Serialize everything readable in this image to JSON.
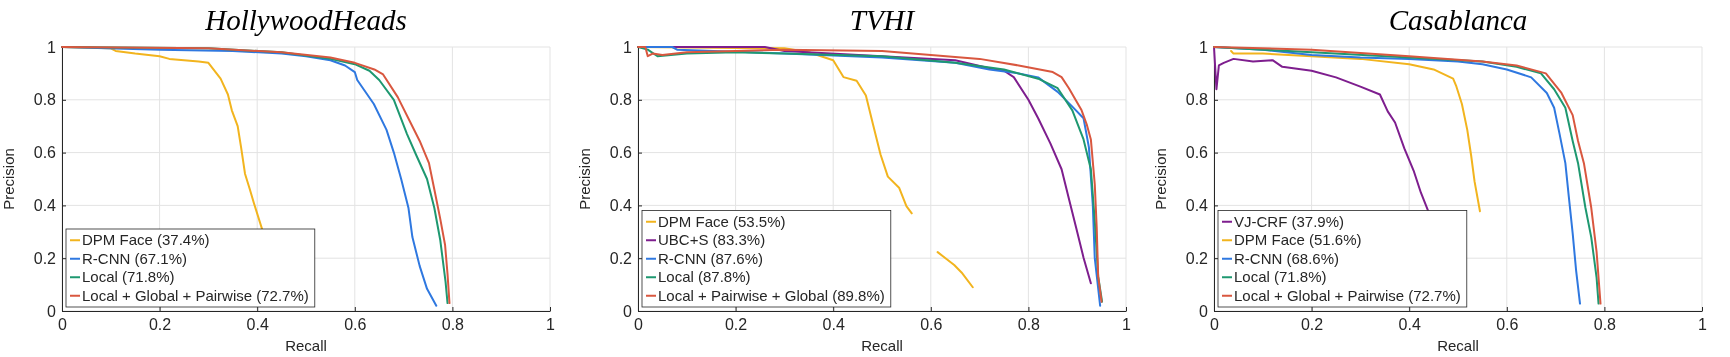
{
  "chart_data": [
    {
      "type": "line",
      "title": "HollywoodHeads",
      "xlabel": "Recall",
      "ylabel": "Precision",
      "xlim": [
        0,
        1
      ],
      "ylim": [
        0,
        1
      ],
      "xticks": [
        0,
        0.2,
        0.4,
        0.6,
        0.8,
        1
      ],
      "yticks": [
        0,
        0.2,
        0.4,
        0.6,
        0.8,
        1
      ],
      "grid": true,
      "legend": "bottom left",
      "series": [
        {
          "name": "DPM Face (37.4%)",
          "color": "#f2b41e",
          "x": [
            0,
            0.1,
            0.11,
            0.15,
            0.2,
            0.22,
            0.28,
            0.3,
            0.325,
            0.34,
            0.348,
            0.36,
            0.367,
            0.375,
            0.385,
            0.393,
            0.41
          ],
          "values": [
            1,
            0.995,
            0.985,
            0.975,
            0.965,
            0.955,
            0.945,
            0.94,
            0.88,
            0.82,
            0.76,
            0.7,
            0.62,
            0.52,
            0.46,
            0.41,
            0.31
          ]
        },
        {
          "name": "R-CNN (67.1%)",
          "color": "#2f78e0",
          "x": [
            0,
            0.2,
            0.35,
            0.45,
            0.5,
            0.55,
            0.58,
            0.6,
            0.605,
            0.639,
            0.665,
            0.68,
            0.695,
            0.71,
            0.718,
            0.733,
            0.748,
            0.767
          ],
          "values": [
            1,
            0.99,
            0.985,
            0.975,
            0.965,
            0.95,
            0.93,
            0.905,
            0.875,
            0.784,
            0.686,
            0.6,
            0.5,
            0.39,
            0.28,
            0.17,
            0.084,
            0.02
          ]
        },
        {
          "name": "Local (71.8%)",
          "color": "#1e9870",
          "x": [
            0,
            0.3,
            0.45,
            0.55,
            0.6,
            0.63,
            0.65,
            0.68,
            0.707,
            0.726,
            0.748,
            0.763,
            0.775,
            0.786,
            0.79
          ],
          "values": [
            1,
            0.995,
            0.98,
            0.955,
            0.935,
            0.91,
            0.875,
            0.8,
            0.67,
            0.59,
            0.5,
            0.39,
            0.27,
            0.11,
            0.03
          ]
        },
        {
          "name": "Local + Global + Pairwise (72.7%)",
          "color": "#d9573f",
          "x": [
            0,
            0.3,
            0.45,
            0.55,
            0.6,
            0.64,
            0.658,
            0.688,
            0.714,
            0.733,
            0.752,
            0.763,
            0.775,
            0.785,
            0.79,
            0.794
          ],
          "values": [
            1,
            0.995,
            0.98,
            0.96,
            0.94,
            0.915,
            0.896,
            0.81,
            0.714,
            0.644,
            0.56,
            0.46,
            0.35,
            0.25,
            0.14,
            0.03
          ]
        }
      ]
    },
    {
      "type": "line",
      "title": "TVHI",
      "xlabel": "Recall",
      "ylabel": "Precision",
      "xlim": [
        0,
        1
      ],
      "ylim": [
        0,
        1
      ],
      "xticks": [
        0,
        0.2,
        0.4,
        0.6,
        0.8,
        1
      ],
      "yticks": [
        0,
        0.2,
        0.4,
        0.6,
        0.8,
        1
      ],
      "grid": true,
      "legend": "bottom left",
      "series": [
        {
          "name": "DPM Face (53.5%)",
          "color": "#f2b41e",
          "x": [
            0,
            0.3,
            0.35,
            0.4,
            0.421,
            0.448,
            0.467,
            0.482,
            0.497,
            0.512,
            0.535,
            0.55,
            0.561,
            null,
            0.614,
            0.648,
            0.663,
            0.686
          ],
          "values": [
            1,
            0.995,
            0.98,
            0.95,
            0.886,
            0.872,
            0.816,
            0.704,
            0.593,
            0.509,
            0.467,
            0.397,
            0.37,
            null,
            0.223,
            0.174,
            0.146,
            0.09
          ]
        },
        {
          "name": "UBC+S (83.3%)",
          "color": "#7e1e8e",
          "x": [
            0,
            0.26,
            0.3,
            0.5,
            0.65,
            0.72,
            0.75,
            0.77,
            0.8,
            0.82,
            0.845,
            0.868,
            0.883,
            0.898,
            0.913,
            0.928
          ],
          "values": [
            1,
            1,
            0.985,
            0.965,
            0.95,
            0.92,
            0.91,
            0.886,
            0.8,
            0.73,
            0.635,
            0.537,
            0.425,
            0.314,
            0.202,
            0.105
          ]
        },
        {
          "name": "R-CNN (87.6%)",
          "color": "#2f78e0",
          "x": [
            0,
            0.07,
            0.08,
            0.3,
            0.5,
            0.65,
            0.72,
            0.78,
            0.82,
            0.86,
            0.89,
            0.913,
            0.924,
            0.932,
            0.936,
            0.947
          ],
          "values": [
            1,
            1,
            0.99,
            0.975,
            0.96,
            0.94,
            0.915,
            0.9,
            0.885,
            0.83,
            0.774,
            0.73,
            0.62,
            0.4,
            0.2,
            0.02
          ]
        },
        {
          "name": "Local (87.8%)",
          "color": "#1e9870",
          "x": [
            0,
            0.02,
            0.04,
            0.1,
            0.2,
            0.3,
            0.5,
            0.65,
            0.75,
            0.82,
            0.86,
            0.89,
            0.913,
            0.928,
            0.936,
            0.943,
            0.951
          ],
          "values": [
            1,
            0.99,
            0.965,
            0.975,
            0.98,
            0.975,
            0.965,
            0.94,
            0.915,
            0.88,
            0.844,
            0.76,
            0.65,
            0.537,
            0.342,
            0.13,
            0.035
          ]
        },
        {
          "name": "Local + Pairwise + Global (89.8%)",
          "color": "#d9573f",
          "x": [
            0,
            0.015,
            0.02,
            0.03,
            0.05,
            0.1,
            0.2,
            0.3,
            0.5,
            0.6,
            0.7,
            0.78,
            0.85,
            0.868,
            0.883,
            0.909,
            0.92,
            0.928,
            0.936,
            0.94,
            0.943,
            0.95
          ],
          "values": [
            1,
            1,
            0.965,
            0.975,
            0.97,
            0.98,
            0.985,
            0.99,
            0.985,
            0.97,
            0.955,
            0.93,
            0.905,
            0.886,
            0.844,
            0.76,
            0.704,
            0.65,
            0.48,
            0.314,
            0.13,
            0.035
          ]
        }
      ]
    },
    {
      "type": "line",
      "title": "Casablanca",
      "xlabel": "Recall",
      "ylabel": "Precision",
      "xlim": [
        0,
        1
      ],
      "ylim": [
        0,
        1
      ],
      "xticks": [
        0,
        0.2,
        0.4,
        0.6,
        0.8,
        1
      ],
      "yticks": [
        0,
        0.2,
        0.4,
        0.6,
        0.8,
        1
      ],
      "grid": true,
      "legend": "bottom left",
      "series": [
        {
          "name": "VJ-CRF (37.9%)",
          "color": "#7e1e8e",
          "x": [
            0,
            0.005,
            0.01,
            0.02,
            0.04,
            0.08,
            0.12,
            0.14,
            0.2,
            0.25,
            0.3,
            0.34,
            0.356,
            0.371,
            0.39,
            0.409,
            0.424,
            0.439
          ],
          "values": [
            1,
            0.84,
            0.93,
            0.94,
            0.955,
            0.945,
            0.95,
            0.925,
            0.91,
            0.885,
            0.85,
            0.82,
            0.756,
            0.714,
            0.616,
            0.532,
            0.448,
            0.378
          ]
        },
        {
          "name": "DPM Face (51.6%)",
          "color": "#f2b41e",
          "x": [
            0.035,
            0.04,
            0.1,
            0.2,
            0.3,
            0.4,
            0.45,
            0.49,
            0.496,
            0.508,
            0.519,
            0.527,
            0.534,
            0.545
          ],
          "values": [
            0.985,
            0.975,
            0.975,
            0.965,
            0.955,
            0.935,
            0.915,
            0.88,
            0.854,
            0.784,
            0.686,
            0.588,
            0.49,
            0.378
          ]
        },
        {
          "name": "R-CNN (68.6%)",
          "color": "#2f78e0",
          "x": [
            0,
            0.1,
            0.2,
            0.3,
            0.4,
            0.5,
            0.55,
            0.6,
            0.65,
            0.682,
            0.697,
            0.708,
            0.72,
            0.727,
            0.735,
            0.742,
            0.75
          ],
          "values": [
            1,
            0.99,
            0.97,
            0.96,
            0.955,
            0.945,
            0.935,
            0.915,
            0.885,
            0.826,
            0.77,
            0.672,
            0.56,
            0.434,
            0.294,
            0.154,
            0.028
          ]
        },
        {
          "name": "Local (71.8%)",
          "color": "#1e9870",
          "x": [
            0,
            0.4,
            0.55,
            0.62,
            0.67,
            0.697,
            0.72,
            0.735,
            0.746,
            0.761,
            0.773,
            0.784,
            0.788
          ],
          "values": [
            1,
            0.96,
            0.945,
            0.925,
            0.9,
            0.84,
            0.77,
            0.644,
            0.56,
            0.392,
            0.28,
            0.126,
            0.028
          ]
        },
        {
          "name": "Local + Global + Pairwise (72.7%)",
          "color": "#d9573f",
          "x": [
            0,
            0.2,
            0.4,
            0.55,
            0.62,
            0.68,
            0.712,
            0.735,
            0.746,
            0.758,
            0.773,
            0.784,
            0.792
          ],
          "values": [
            1,
            0.99,
            0.965,
            0.945,
            0.93,
            0.9,
            0.826,
            0.742,
            0.644,
            0.56,
            0.392,
            0.224,
            0.028
          ]
        }
      ]
    }
  ]
}
